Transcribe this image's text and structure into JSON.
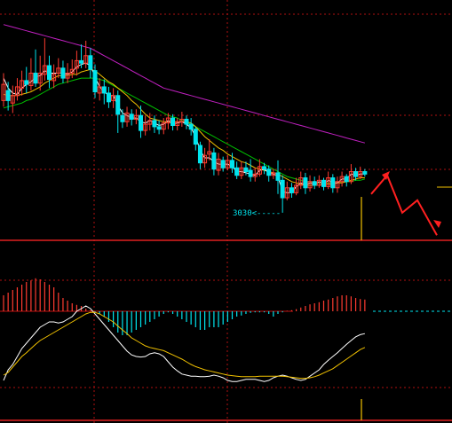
{
  "chart_data": {
    "type": "candlestick",
    "grid": true,
    "colors": {
      "background": "#000000",
      "up": "#ff3b30",
      "down": "#00e5ee",
      "ma_short": "#ffffff",
      "ma_mid": "#f2c200",
      "ma_long": "#00c000",
      "ma_slow": "#c020c0",
      "grid": "#b01010",
      "macd_dif": "#ffffff",
      "macd_dea": "#f2c200",
      "arrow": "#ff2020",
      "marker": "#f2c200"
    },
    "price_panel": {
      "ylim": [
        3010,
        3190
      ],
      "low_annotation": {
        "text": "3030<-----",
        "value": 3030
      },
      "candles": [
        [
          3120,
          3133,
          3142,
          3115
        ],
        [
          3128,
          3120,
          3135,
          3112
        ],
        [
          3118,
          3124,
          3132,
          3110
        ],
        [
          3124,
          3131,
          3138,
          3120
        ],
        [
          3130,
          3136,
          3144,
          3124
        ],
        [
          3136,
          3133,
          3147,
          3126
        ],
        [
          3132,
          3142,
          3154,
          3128
        ],
        [
          3142,
          3134,
          3161,
          3131
        ],
        [
          3134,
          3142,
          3156,
          3128
        ],
        [
          3141,
          3148,
          3170,
          3136
        ],
        [
          3148,
          3137,
          3156,
          3130
        ],
        [
          3136,
          3141,
          3149,
          3130
        ],
        [
          3142,
          3146,
          3154,
          3138
        ],
        [
          3146,
          3138,
          3152,
          3134
        ],
        [
          3138,
          3142,
          3150,
          3134
        ],
        [
          3142,
          3145,
          3153,
          3138
        ],
        [
          3146,
          3152,
          3160,
          3140
        ],
        [
          3152,
          3150,
          3165,
          3146
        ],
        [
          3150,
          3156,
          3168,
          3146
        ],
        [
          3156,
          3145,
          3162,
          3138
        ],
        [
          3144,
          3127,
          3149,
          3122
        ],
        [
          3126,
          3131,
          3138,
          3120
        ],
        [
          3131,
          3126,
          3137,
          3117
        ],
        [
          3126,
          3119,
          3131,
          3114
        ],
        [
          3120,
          3124,
          3130,
          3114
        ],
        [
          3124,
          3109,
          3128,
          3094
        ],
        [
          3108,
          3103,
          3113,
          3098
        ],
        [
          3103,
          3110,
          3115,
          3099
        ],
        [
          3109,
          3105,
          3113,
          3100
        ],
        [
          3105,
          3108,
          3113,
          3101
        ],
        [
          3108,
          3096,
          3116,
          3090
        ],
        [
          3096,
          3101,
          3108,
          3092
        ],
        [
          3101,
          3104,
          3110,
          3096
        ],
        [
          3104,
          3099,
          3108,
          3094
        ],
        [
          3099,
          3097,
          3104,
          3093
        ],
        [
          3097,
          3102,
          3106,
          3093
        ],
        [
          3102,
          3106,
          3110,
          3097
        ],
        [
          3106,
          3100,
          3109,
          3096
        ],
        [
          3100,
          3103,
          3106,
          3096
        ],
        [
          3103,
          3105,
          3111,
          3099
        ],
        [
          3105,
          3101,
          3108,
          3097
        ],
        [
          3101,
          3097,
          3106,
          3092
        ],
        [
          3097,
          3085,
          3099,
          3080
        ],
        [
          3084,
          3070,
          3087,
          3065
        ],
        [
          3070,
          3076,
          3082,
          3066
        ],
        [
          3077,
          3079,
          3089,
          3072
        ],
        [
          3078,
          3065,
          3082,
          3060
        ],
        [
          3064,
          3073,
          3078,
          3060
        ],
        [
          3072,
          3066,
          3075,
          3063
        ],
        [
          3066,
          3072,
          3076,
          3064
        ],
        [
          3072,
          3066,
          3078,
          3062
        ],
        [
          3066,
          3060,
          3071,
          3057
        ],
        [
          3060,
          3066,
          3071,
          3057
        ],
        [
          3066,
          3063,
          3071,
          3060
        ],
        [
          3064,
          3059,
          3073,
          3055
        ],
        [
          3059,
          3061,
          3066,
          3055
        ],
        [
          3061,
          3067,
          3073,
          3059
        ],
        [
          3067,
          3065,
          3070,
          3061
        ],
        [
          3065,
          3060,
          3068,
          3055
        ],
        [
          3060,
          3062,
          3065,
          3057
        ],
        [
          3062,
          3056,
          3072,
          3045
        ],
        [
          3056,
          3042,
          3060,
          3030
        ],
        [
          3042,
          3050,
          3055,
          3040
        ],
        [
          3050,
          3046,
          3054,
          3042
        ],
        [
          3046,
          3052,
          3058,
          3044
        ],
        [
          3052,
          3058,
          3063,
          3049
        ],
        [
          3058,
          3050,
          3062,
          3045
        ],
        [
          3050,
          3055,
          3060,
          3047
        ],
        [
          3055,
          3052,
          3059,
          3049
        ],
        [
          3052,
          3056,
          3060,
          3050
        ],
        [
          3056,
          3051,
          3058,
          3048
        ],
        [
          3051,
          3058,
          3063,
          3049
        ],
        [
          3058,
          3050,
          3061,
          3046
        ],
        [
          3050,
          3055,
          3059,
          3046
        ],
        [
          3055,
          3059,
          3063,
          3051
        ],
        [
          3059,
          3055,
          3061,
          3051
        ],
        [
          3055,
          3063,
          3069,
          3053
        ],
        [
          3063,
          3059,
          3066,
          3056
        ],
        [
          3059,
          3063,
          3067,
          3057
        ],
        [
          3063,
          3061,
          3065,
          3059
        ]
      ],
      "ma_short": [
        3138,
        3130,
        3126,
        3125,
        3130,
        3133,
        3135,
        3139,
        3140,
        3144,
        3142,
        3142,
        3142,
        3142,
        3141,
        3143,
        3147,
        3149,
        3150,
        3148,
        3139,
        3131,
        3127,
        3124,
        3124,
        3116,
        3110,
        3108,
        3106,
        3106,
        3103,
        3102,
        3104,
        3102,
        3100,
        3101,
        3104,
        3101,
        3102,
        3103,
        3101,
        3098,
        3091,
        3080,
        3074,
        3074,
        3071,
        3069,
        3069,
        3069,
        3067,
        3063,
        3063,
        3062,
        3061,
        3060,
        3064,
        3065,
        3062,
        3061,
        3059,
        3047,
        3046,
        3046,
        3051,
        3054,
        3052,
        3054,
        3053,
        3055,
        3053,
        3056,
        3054,
        3054,
        3057,
        3057,
        3061,
        3060,
        3061,
        3061
      ],
      "ma_mid": [
        3125,
        3124,
        3124,
        3124,
        3125,
        3126,
        3127,
        3129,
        3131,
        3134,
        3136,
        3138,
        3140,
        3140,
        3140,
        3141,
        3141,
        3143,
        3144,
        3145,
        3144,
        3141,
        3138,
        3135,
        3133,
        3130,
        3127,
        3124,
        3120,
        3117,
        3113,
        3109,
        3106,
        3105,
        3104,
        3103,
        3103,
        3103,
        3103,
        3103,
        3103,
        3102,
        3099,
        3095,
        3091,
        3088,
        3085,
        3082,
        3080,
        3077,
        3075,
        3073,
        3071,
        3070,
        3068,
        3066,
        3065,
        3064,
        3063,
        3062,
        3061,
        3059,
        3057,
        3055,
        3054,
        3053,
        3052,
        3052,
        3052,
        3052,
        3053,
        3053,
        3053,
        3054,
        3054,
        3055,
        3056,
        3057,
        3058,
        3058
      ],
      "ma_long": [
        3114,
        3115,
        3116,
        3117,
        3118,
        3120,
        3121,
        3123,
        3125,
        3127,
        3129,
        3131,
        3133,
        3134,
        3135,
        3136,
        3137,
        3138,
        3138,
        3138,
        3138,
        3137,
        3136,
        3134,
        3132,
        3130,
        3128,
        3126,
        3124,
        3122,
        3120,
        3118,
        3116,
        3114,
        3112,
        3110,
        3108,
        3107,
        3106,
        3104,
        3103,
        3101,
        3099,
        3097,
        3095,
        3093,
        3091,
        3089,
        3087,
        3085,
        3083,
        3081,
        3079,
        3077,
        3075,
        3073,
        3071,
        3069,
        3067,
        3065,
        3063,
        3061,
        3059,
        3058,
        3057,
        3056,
        3055,
        3055,
        3054,
        3054,
        3054,
        3054,
        3054,
        3054,
        3055,
        3055,
        3055,
        3056,
        3056,
        3057
      ],
      "ma_slow": [
        3181,
        3180,
        3179,
        3178,
        3177,
        3176,
        3175,
        3174,
        3173,
        3172,
        3171,
        3170,
        3169,
        3168,
        3167,
        3166,
        3165,
        3164,
        3163,
        3162,
        3160,
        3158,
        3156,
        3154,
        3152,
        3150,
        3148,
        3146,
        3144,
        3142,
        3140,
        3138,
        3136,
        3134,
        3132,
        3130,
        3129,
        3128,
        3127,
        3126,
        3125,
        3124,
        3123,
        3122,
        3121,
        3120,
        3119,
        3118,
        3117,
        3116,
        3115,
        3114,
        3113,
        3112,
        3111,
        3110,
        3109,
        3108,
        3107,
        3106,
        3105,
        3104,
        3103,
        3102,
        3101,
        3100,
        3099,
        3098,
        3097,
        3096,
        3095,
        3094,
        3093,
        3092,
        3091,
        3090,
        3089,
        3088,
        3087,
        3086
      ]
    },
    "macd_panel": {
      "ylim": [
        -1.2,
        1.2
      ],
      "histogram": [
        0.3,
        0.35,
        0.4,
        0.45,
        0.5,
        0.55,
        0.58,
        0.62,
        0.6,
        0.55,
        0.5,
        0.45,
        0.35,
        0.25,
        0.2,
        0.15,
        0.12,
        0.1,
        0.05,
        0.02,
        -0.02,
        -0.05,
        -0.1,
        -0.2,
        -0.3,
        -0.4,
        -0.45,
        -0.45,
        -0.4,
        -0.35,
        -0.3,
        -0.25,
        -0.2,
        -0.15,
        -0.1,
        -0.05,
        -0.02,
        -0.05,
        -0.1,
        -0.15,
        -0.2,
        -0.25,
        -0.3,
        -0.35,
        -0.35,
        -0.3,
        -0.3,
        -0.3,
        -0.25,
        -0.2,
        -0.15,
        -0.1,
        -0.08,
        -0.05,
        -0.03,
        -0.02,
        -0.02,
        -0.02,
        -0.05,
        -0.1,
        -0.05,
        -0.02,
        0.01,
        0.02,
        0.04,
        0.07,
        0.1,
        0.13,
        0.15,
        0.17,
        0.2,
        0.22,
        0.25,
        0.28,
        0.3,
        0.3,
        0.28,
        0.25,
        0.23,
        0.22
      ],
      "dif": [
        -0.8,
        -0.6,
        -0.5,
        -0.35,
        -0.2,
        -0.1,
        0.0,
        0.1,
        0.2,
        0.25,
        0.3,
        0.3,
        0.28,
        0.3,
        0.35,
        0.4,
        0.5,
        0.55,
        0.6,
        0.55,
        0.45,
        0.35,
        0.25,
        0.15,
        0.05,
        -0.05,
        -0.15,
        -0.25,
        -0.32,
        -0.35,
        -0.36,
        -0.35,
        -0.3,
        -0.28,
        -0.3,
        -0.35,
        -0.45,
        -0.55,
        -0.62,
        -0.68,
        -0.7,
        -0.72,
        -0.72,
        -0.73,
        -0.73,
        -0.72,
        -0.7,
        -0.72,
        -0.75,
        -0.8,
        -0.82,
        -0.82,
        -0.8,
        -0.78,
        -0.78,
        -0.78,
        -0.8,
        -0.82,
        -0.8,
        -0.75,
        -0.72,
        -0.7,
        -0.72,
        -0.75,
        -0.78,
        -0.8,
        -0.78,
        -0.72,
        -0.66,
        -0.6,
        -0.5,
        -0.42,
        -0.35,
        -0.28,
        -0.2,
        -0.12,
        -0.05,
        0.02,
        0.06,
        0.08
      ],
      "dea": [
        -0.7,
        -0.65,
        -0.55,
        -0.45,
        -0.35,
        -0.28,
        -0.2,
        -0.12,
        -0.05,
        0.0,
        0.05,
        0.1,
        0.15,
        0.2,
        0.25,
        0.3,
        0.35,
        0.4,
        0.45,
        0.48,
        0.48,
        0.45,
        0.4,
        0.35,
        0.3,
        0.22,
        0.15,
        0.08,
        0.0,
        -0.05,
        -0.1,
        -0.15,
        -0.18,
        -0.2,
        -0.22,
        -0.24,
        -0.28,
        -0.32,
        -0.36,
        -0.4,
        -0.45,
        -0.5,
        -0.54,
        -0.57,
        -0.6,
        -0.62,
        -0.64,
        -0.66,
        -0.68,
        -0.7,
        -0.71,
        -0.72,
        -0.73,
        -0.73,
        -0.73,
        -0.73,
        -0.72,
        -0.72,
        -0.72,
        -0.72,
        -0.72,
        -0.72,
        -0.73,
        -0.74,
        -0.75,
        -0.76,
        -0.76,
        -0.75,
        -0.73,
        -0.7,
        -0.66,
        -0.62,
        -0.58,
        -0.52,
        -0.46,
        -0.4,
        -0.34,
        -0.28,
        -0.22,
        -0.18
      ]
    },
    "forecast_arrow": [
      3045,
      3060,
      3030,
      3040,
      3012
    ]
  }
}
